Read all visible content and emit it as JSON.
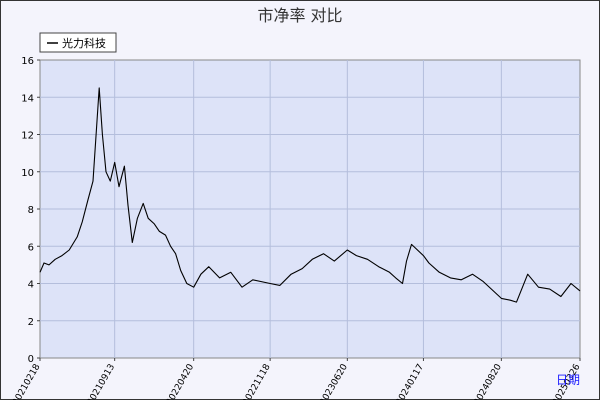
{
  "chart_data": {
    "type": "line",
    "title": "市净率  对比",
    "xlabel": "日期",
    "ylabel": "",
    "ylim": [
      0,
      16
    ],
    "yticks": [
      0,
      2,
      4,
      6,
      8,
      10,
      12,
      14,
      16
    ],
    "grid": true,
    "legend_position": "top-left",
    "x_ticks": [
      "20210218",
      "20210913",
      "20220420",
      "20221118",
      "20230620",
      "20240117",
      "20240820",
      "20250326"
    ],
    "series": [
      {
        "name": "光力科技",
        "color": "#000000",
        "x": [
          "20210218",
          "20210301",
          "20210315",
          "20210401",
          "20210420",
          "20210510",
          "20210601",
          "20210615",
          "20210701",
          "20210715",
          "20210801",
          "20210810",
          "20210820",
          "20210901",
          "20210913",
          "20210925",
          "20211010",
          "20211020",
          "20211101",
          "20211115",
          "20211201",
          "20211215",
          "20220101",
          "20220115",
          "20220201",
          "20220215",
          "20220301",
          "20220315",
          "20220401",
          "20220420",
          "20220510",
          "20220601",
          "20220701",
          "20220801",
          "20220901",
          "20221001",
          "20221118",
          "20221215",
          "20230115",
          "20230215",
          "20230315",
          "20230415",
          "20230515",
          "20230620",
          "20230715",
          "20230815",
          "20230915",
          "20231015",
          "20231101",
          "20231120",
          "20231201",
          "20231215",
          "20240117",
          "20240201",
          "20240301",
          "20240401",
          "20240501",
          "20240601",
          "20240701",
          "20240820",
          "20240915",
          "20241001",
          "20241101",
          "20241201",
          "20250101",
          "20250201",
          "20250301",
          "20250326"
        ],
        "values": [
          4.6,
          5.1,
          5.0,
          5.3,
          5.5,
          5.8,
          6.5,
          7.3,
          8.5,
          9.5,
          14.5,
          12.0,
          10.0,
          9.5,
          10.5,
          9.2,
          10.3,
          8.2,
          6.2,
          7.5,
          8.3,
          7.5,
          7.2,
          6.8,
          6.6,
          6.0,
          5.6,
          4.7,
          4.0,
          3.8,
          4.5,
          4.9,
          4.3,
          4.6,
          3.8,
          4.2,
          4.0,
          3.9,
          4.5,
          4.8,
          5.3,
          5.6,
          5.2,
          5.8,
          5.5,
          5.3,
          4.9,
          4.6,
          4.3,
          4.0,
          5.2,
          6.1,
          5.5,
          5.1,
          4.6,
          4.3,
          4.2,
          4.5,
          4.1,
          3.2,
          3.1,
          3.0,
          4.5,
          3.8,
          3.7,
          3.3,
          4.0,
          3.6
        ]
      }
    ]
  }
}
